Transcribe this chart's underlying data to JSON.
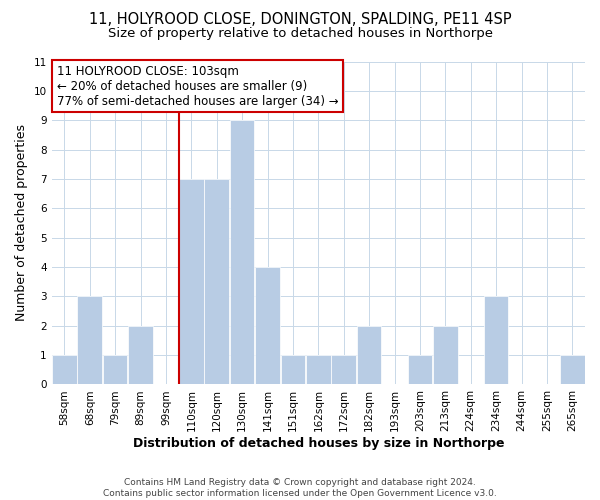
{
  "title": "11, HOLYROOD CLOSE, DONINGTON, SPALDING, PE11 4SP",
  "subtitle": "Size of property relative to detached houses in Northorpe",
  "xlabel": "Distribution of detached houses by size in Northorpe",
  "ylabel": "Number of detached properties",
  "footer_line1": "Contains HM Land Registry data © Crown copyright and database right 2024.",
  "footer_line2": "Contains public sector information licensed under the Open Government Licence v3.0.",
  "annotation_title": "11 HOLYROOD CLOSE: 103sqm",
  "annotation_line1": "← 20% of detached houses are smaller (9)",
  "annotation_line2": "77% of semi-detached houses are larger (34) →",
  "bar_labels": [
    "58sqm",
    "68sqm",
    "79sqm",
    "89sqm",
    "99sqm",
    "110sqm",
    "120sqm",
    "130sqm",
    "141sqm",
    "151sqm",
    "162sqm",
    "172sqm",
    "182sqm",
    "193sqm",
    "203sqm",
    "213sqm",
    "224sqm",
    "234sqm",
    "244sqm",
    "255sqm",
    "265sqm"
  ],
  "bar_values": [
    1,
    3,
    1,
    2,
    0,
    7,
    7,
    9,
    4,
    1,
    1,
    1,
    2,
    0,
    1,
    2,
    0,
    3,
    0,
    0,
    1
  ],
  "bar_color": "#b8cce4",
  "highlight_line_color": "#cc0000",
  "ylim": [
    0,
    11
  ],
  "yticks": [
    0,
    1,
    2,
    3,
    4,
    5,
    6,
    7,
    8,
    9,
    10,
    11
  ],
  "background_color": "#ffffff",
  "grid_color": "#c8d8e8",
  "annotation_box_edge_color": "#cc0000",
  "title_fontsize": 10.5,
  "subtitle_fontsize": 9.5,
  "axis_label_fontsize": 9,
  "tick_fontsize": 7.5,
  "annotation_fontsize": 8.5,
  "footer_fontsize": 6.5
}
